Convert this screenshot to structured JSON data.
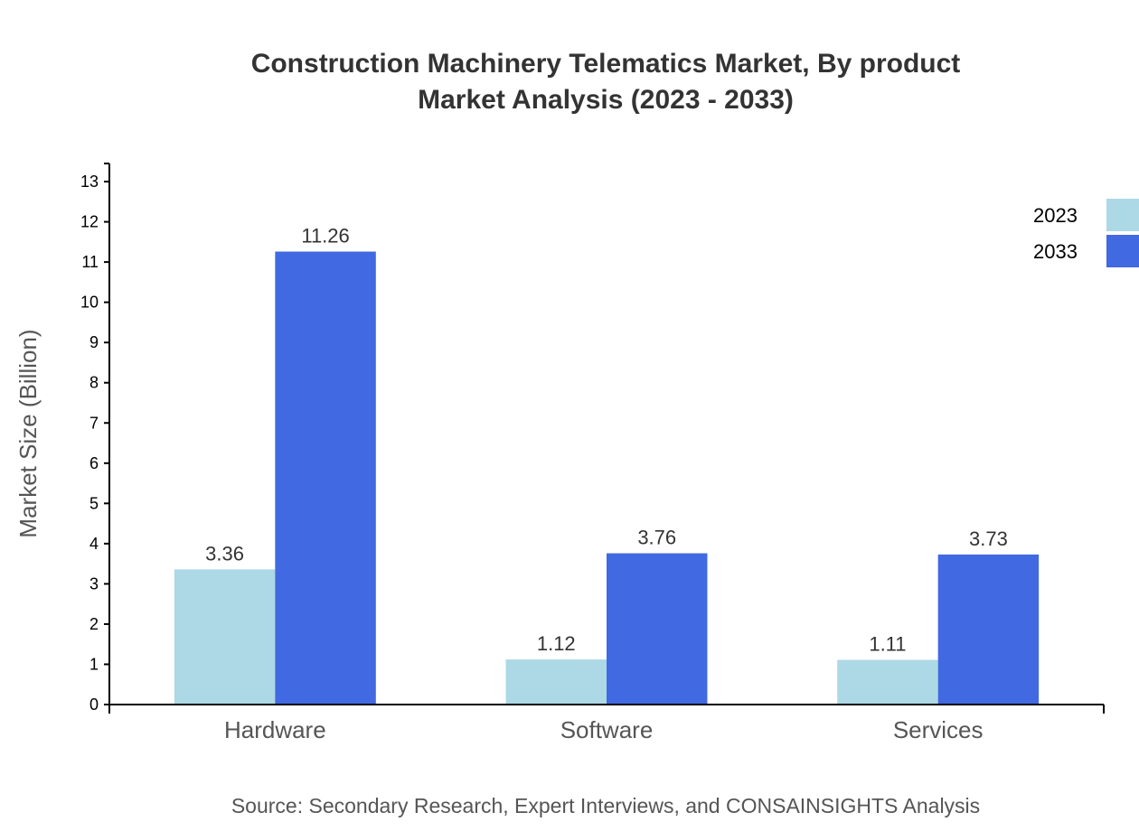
{
  "chart_data": {
    "type": "bar",
    "title": "Construction Machinery Telematics Market, By product",
    "subtitle": "Market Analysis (2023 - 2033)",
    "xlabel": "",
    "ylabel": "Market Size (Billion)",
    "categories": [
      "Hardware",
      "Software",
      "Services"
    ],
    "series": [
      {
        "name": "2023",
        "values": [
          3.36,
          1.12,
          1.11
        ],
        "color": "#ADD8E6"
      },
      {
        "name": "2033",
        "values": [
          11.26,
          3.76,
          3.73
        ],
        "color": "#4169E1"
      }
    ],
    "ylim": [
      0,
      13.45
    ],
    "yticks": [
      0,
      1,
      2,
      3,
      4,
      5,
      6,
      7,
      8,
      9,
      10,
      11,
      12,
      13
    ],
    "grid": false,
    "legend": "top-right",
    "source": "Source: Secondary Research, Expert Interviews, and CONSAINSIGHTS Analysis"
  }
}
